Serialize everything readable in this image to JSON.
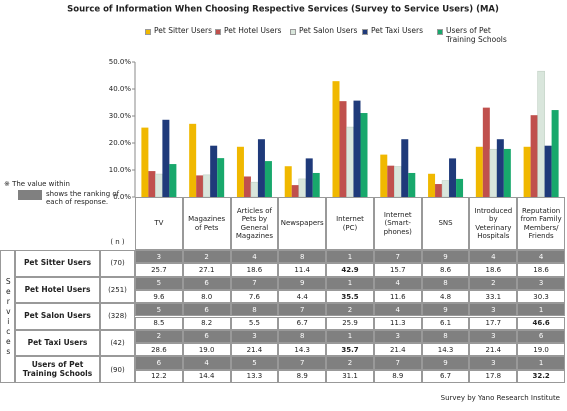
{
  "chart_data": {
    "type": "bar",
    "title": "Source of Information When Choosing Respective Services (Survey to Service Users) (MA)",
    "categories": [
      "TV",
      "Magazines of Pets",
      "Articles of Pets by General Magazines",
      "Newspapers",
      "Internet (PC)",
      "Internet (Smart-phones)",
      "SNS",
      "Introduced by Veterinary Hospitals",
      "Reputation from Family Members/ Friends"
    ],
    "series": [
      {
        "name": "Pet Sitter Users",
        "n": "(70)",
        "color": "#f0b800",
        "values": [
          25.7,
          27.1,
          18.6,
          11.4,
          42.9,
          15.7,
          8.6,
          18.6,
          18.6
        ],
        "value_labels": [
          "25.7",
          "27.1",
          "18.6",
          "11.4",
          "42.9",
          "15.7",
          "8.6",
          "18.6",
          "18.6"
        ],
        "ranks": [
          3,
          2,
          4,
          8,
          1,
          7,
          9,
          4,
          4
        ]
      },
      {
        "name": "Pet Hotel Users",
        "n": "(251)",
        "color": "#c0504d",
        "values": [
          9.6,
          8.0,
          7.6,
          4.4,
          35.5,
          11.6,
          4.8,
          33.1,
          30.3
        ],
        "value_labels": [
          "9.6",
          "8.0",
          "7.6",
          "4.4",
          "35.5",
          "11.6",
          "4.8",
          "33.1",
          "30.3"
        ],
        "ranks": [
          5,
          6,
          7,
          9,
          1,
          4,
          8,
          2,
          3
        ]
      },
      {
        "name": "Pet Salon Users",
        "n": "(328)",
        "color": "#d9e6dc",
        "values": [
          8.5,
          8.2,
          5.5,
          6.7,
          25.9,
          11.3,
          6.1,
          17.7,
          46.6
        ],
        "value_labels": [
          "8.5",
          "8.2",
          "5.5",
          "6.7",
          "25.9",
          "11.3",
          "6.1",
          "17.7",
          "46.6"
        ],
        "ranks": [
          5,
          6,
          8,
          7,
          2,
          4,
          9,
          3,
          1
        ]
      },
      {
        "name": "Pet Taxi Users",
        "n": "(42)",
        "color": "#1f3a7a",
        "values": [
          28.6,
          19.0,
          21.4,
          14.3,
          35.7,
          21.4,
          14.3,
          21.4,
          19.0
        ],
        "value_labels": [
          "28.6",
          "19.0",
          "21.4",
          "14.3",
          "35.7",
          "21.4",
          "14.3",
          "21.4",
          "19.0"
        ],
        "ranks": [
          2,
          6,
          3,
          8,
          1,
          3,
          8,
          3,
          6
        ]
      },
      {
        "name": "Users of Pet Training Schools",
        "n": "(90)",
        "color": "#18a86c",
        "values": [
          12.2,
          14.4,
          13.3,
          8.9,
          31.1,
          8.9,
          6.7,
          17.8,
          32.2
        ],
        "value_labels": [
          "12.2",
          "14.4",
          "13.3",
          "8.9",
          "31.1",
          "8.9",
          "6.7",
          "17.8",
          "32.2"
        ],
        "ranks": [
          6,
          4,
          5,
          7,
          2,
          7,
          9,
          3,
          1
        ]
      }
    ],
    "ylim": [
      0,
      50
    ],
    "yticks": [
      {
        "value": 0,
        "label": "0.0%"
      },
      {
        "value": 10,
        "label": "10.0%"
      },
      {
        "value": 20,
        "label": "20.0%"
      },
      {
        "value": 30,
        "label": "30.0%"
      },
      {
        "value": 40,
        "label": "40.0%"
      },
      {
        "value": 50,
        "label": "50.0%"
      }
    ],
    "grid": false,
    "note": [
      "※ The value within",
      "shows the ranking of each of response."
    ],
    "n_header": "( n )",
    "row_group_label": "Services",
    "source": "Survey by Yano Research Institute"
  }
}
